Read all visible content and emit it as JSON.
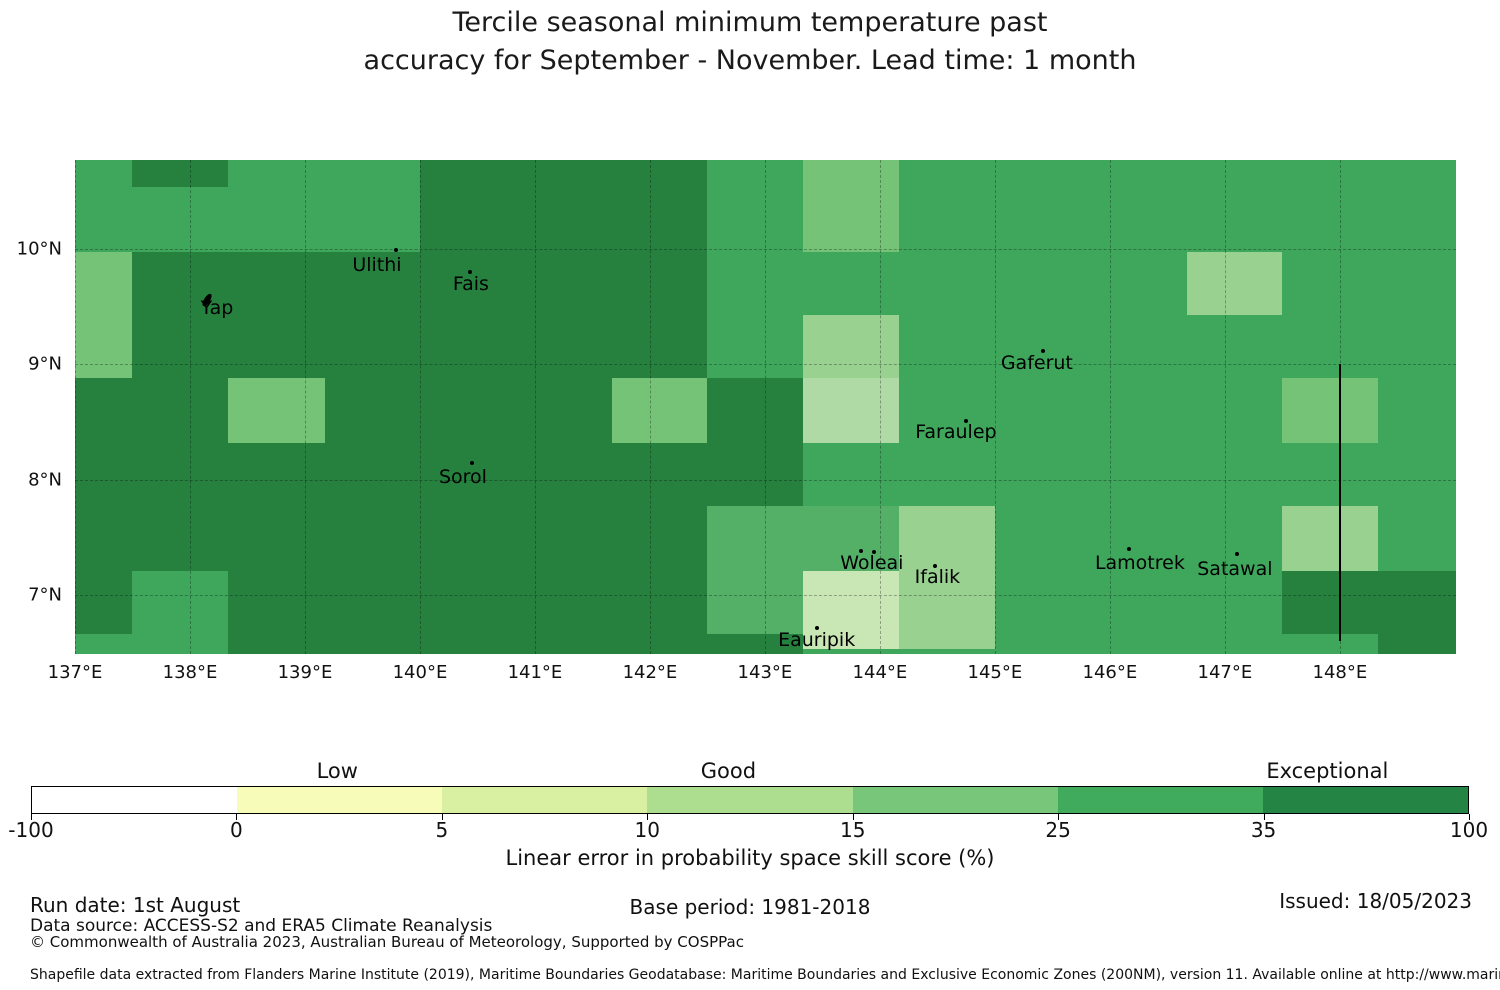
{
  "title": {
    "line1": "Tercile seasonal minimum temperature past",
    "line2": "accuracy for September - November. Lead time: 1 month"
  },
  "map_colors": {
    "dark": "#26813F",
    "medium": "#3FA75C",
    "light1": "#54B067",
    "light2": "#74C377",
    "pale": "#98D190",
    "pale2": "#AFD9A5",
    "palest": "#C9E6B5"
  },
  "chart_data": {
    "type": "heatmap",
    "title": "Tercile seasonal minimum temperature past accuracy for September - November. Lead time: 1 month",
    "value_label": "Linear error in probability space skill score (%)",
    "projection": {
      "lon_min": 137.0,
      "lon_max": 149.01,
      "lat_min": 6.49,
      "lat_max": 10.77
    },
    "x_ticks": [
      "137°E",
      "138°E",
      "139°E",
      "140°E",
      "141°E",
      "142°E",
      "143°E",
      "144°E",
      "145°E",
      "146°E",
      "147°E",
      "148°E"
    ],
    "x_tick_lons": [
      137,
      138,
      139,
      140,
      141,
      142,
      143,
      144,
      145,
      146,
      147,
      148
    ],
    "y_ticks": [
      "7°N",
      "8°N",
      "9°N",
      "10°N"
    ],
    "y_tick_lats": [
      7,
      8,
      9,
      10
    ],
    "gridline_lons": [
      137,
      138,
      139,
      140,
      141,
      142,
      143,
      144,
      145,
      146,
      147,
      148
    ],
    "gridline_lats": [
      7,
      8,
      9,
      10
    ],
    "background_bucket": "25-35",
    "cells": [
      {
        "lon1": 137.5,
        "lon2": 138.33,
        "lat1": 10.54,
        "lat2": 10.77,
        "shade": "dark",
        "bucket": "35-100"
      },
      {
        "lon1": 140.0,
        "lon2": 142.5,
        "lat1": 9.97,
        "lat2": 10.77,
        "shade": "dark",
        "bucket": "35-100"
      },
      {
        "lon1": 137.0,
        "lon2": 142.5,
        "lat1": 6.66,
        "lat2": 9.97,
        "shade": "dark",
        "bucket": "35-100"
      },
      {
        "lon1": 138.33,
        "lon2": 142.5,
        "lat1": 6.49,
        "lat2": 6.66,
        "shade": "dark",
        "bucket": "35-100"
      },
      {
        "lon1": 142.5,
        "lon2": 143.33,
        "lat1": 7.77,
        "lat2": 8.88,
        "shade": "dark",
        "bucket": "35-100"
      },
      {
        "lon1": 142.5,
        "lon2": 143.33,
        "lat1": 6.49,
        "lat2": 6.66,
        "shade": "dark",
        "bucket": "35-100"
      },
      {
        "lon1": 147.5,
        "lon2": 149.01,
        "lat1": 6.66,
        "lat2": 7.21,
        "shade": "dark",
        "bucket": "35-100"
      },
      {
        "lon1": 148.33,
        "lon2": 149.01,
        "lat1": 6.49,
        "lat2": 6.66,
        "shade": "dark",
        "bucket": "35-100"
      },
      {
        "lon1": 137.5,
        "lon2": 138.33,
        "lat1": 6.49,
        "lat2": 7.21,
        "shade": "medium",
        "bucket": "25-35"
      },
      {
        "lon1": 137.0,
        "lon2": 137.5,
        "lat1": 8.88,
        "lat2": 9.97,
        "shade": "light2",
        "bucket": "15-25"
      },
      {
        "lon1": 138.33,
        "lon2": 139.17,
        "lat1": 8.32,
        "lat2": 8.88,
        "shade": "light2",
        "bucket": "15-25"
      },
      {
        "lon1": 141.67,
        "lon2": 142.5,
        "lat1": 8.32,
        "lat2": 8.88,
        "shade": "light2",
        "bucket": "15-25"
      },
      {
        "lon1": 143.33,
        "lon2": 144.17,
        "lat1": 9.97,
        "lat2": 10.77,
        "shade": "light2",
        "bucket": "15-25"
      },
      {
        "lon1": 147.5,
        "lon2": 148.33,
        "lat1": 8.32,
        "lat2": 8.88,
        "shade": "light2",
        "bucket": "15-25"
      },
      {
        "lon1": 142.5,
        "lon2": 143.33,
        "lat1": 6.66,
        "lat2": 7.77,
        "shade": "light1",
        "bucket": "15-25"
      },
      {
        "lon1": 143.33,
        "lon2": 144.17,
        "lat1": 7.21,
        "lat2": 7.77,
        "shade": "light1",
        "bucket": "15-25"
      },
      {
        "lon1": 143.33,
        "lon2": 144.17,
        "lat1": 8.88,
        "lat2": 9.43,
        "shade": "pale",
        "bucket": "10-15"
      },
      {
        "lon1": 146.67,
        "lon2": 147.5,
        "lat1": 9.43,
        "lat2": 9.97,
        "shade": "pale",
        "bucket": "10-15"
      },
      {
        "lon1": 147.5,
        "lon2": 148.33,
        "lat1": 7.21,
        "lat2": 7.77,
        "shade": "pale",
        "bucket": "10-15"
      },
      {
        "lon1": 144.17,
        "lon2": 145.0,
        "lat1": 6.53,
        "lat2": 7.77,
        "shade": "pale",
        "bucket": "10-15"
      },
      {
        "lon1": 143.33,
        "lon2": 144.17,
        "lat1": 8.32,
        "lat2": 8.88,
        "shade": "pale2",
        "bucket": "10-15"
      },
      {
        "lon1": 143.33,
        "lon2": 144.17,
        "lat1": 6.53,
        "lat2": 7.21,
        "shade": "palest",
        "bucket": "5-10"
      }
    ],
    "islands": [
      {
        "name": "Yap",
        "label_lon": 138.235,
        "label_lat": 9.489,
        "markers": [
          [
            138.148,
            9.558
          ]
        ],
        "marker_style": "shape"
      },
      {
        "name": "Ulithi",
        "label_lon": 139.626,
        "label_lat": 9.861,
        "markers": [
          [
            139.791,
            9.991
          ]
        ],
        "marker_style": "dot"
      },
      {
        "name": "Fais",
        "label_lon": 140.443,
        "label_lat": 9.697,
        "markers": [
          [
            140.435,
            9.801
          ]
        ],
        "marker_style": "dot"
      },
      {
        "name": "Sorol",
        "label_lon": 140.374,
        "label_lat": 8.026,
        "markers": [
          [
            140.452,
            8.147
          ]
        ],
        "marker_style": "dot"
      },
      {
        "name": "Gaferut",
        "label_lon": 145.365,
        "label_lat": 9.013,
        "markers": [
          [
            145.417,
            9.117
          ]
        ],
        "marker_style": "dot"
      },
      {
        "name": "Faraulep",
        "label_lon": 144.661,
        "label_lat": 8.416,
        "markers": [
          [
            144.748,
            8.511
          ]
        ],
        "marker_style": "dot"
      },
      {
        "name": "Woleai",
        "label_lon": 143.93,
        "label_lat": 7.28,
        "markers": [
          [
            143.835,
            7.385
          ],
          [
            143.948,
            7.377
          ]
        ],
        "marker_style": "dot"
      },
      {
        "name": "Ifalik",
        "label_lon": 144.5,
        "label_lat": 7.16,
        "markers": [
          [
            144.478,
            7.255
          ]
        ],
        "marker_style": "dot"
      },
      {
        "name": "Eauripik",
        "label_lon": 143.45,
        "label_lat": 6.61,
        "markers": [
          [
            143.455,
            6.715
          ]
        ],
        "marker_style": "dot"
      },
      {
        "name": "Lamotrek",
        "label_lon": 146.261,
        "label_lat": 7.281,
        "markers": [
          [
            146.165,
            7.403
          ]
        ],
        "marker_style": "dot"
      },
      {
        "name": "Satawal",
        "label_lon": 147.087,
        "label_lat": 7.229,
        "markers": [
          [
            147.104,
            7.359
          ]
        ],
        "marker_style": "dot"
      }
    ],
    "eez_line": {
      "lon": 148.0,
      "lat_top": 9.0,
      "lat_bottom": 6.6
    }
  },
  "colorbar": {
    "categories": [
      {
        "label": "Low",
        "pos_pct": 21.3
      },
      {
        "label": "Good",
        "pos_pct": 48.5
      },
      {
        "label": "Exceptional",
        "pos_pct": 90.15
      }
    ],
    "tick_labels": [
      "-100",
      "0",
      "5",
      "10",
      "15",
      "25",
      "35",
      "100"
    ],
    "segment_colors": [
      "#FFFFFF",
      "#F7FCB9",
      "#D9F0A3",
      "#ADDD8E",
      "#78C679",
      "#41AB5D",
      "#238443"
    ],
    "axis_label": "Linear error in probability space skill score (%)"
  },
  "footer": {
    "run_date": "Run date: 1st August",
    "base_period": "Base period: 1981-2018",
    "issued": "Issued: 18/05/2023",
    "data_source": "Data source: ACCESS-S2 and ERA5 Climate Reanalysis",
    "copyright": "© Commonwealth of Australia 2023, Australian Bureau of Meteorology, Supported by COSPPac",
    "shapefile_note": "Shapefile data extracted from Flanders Marine Institute (2019), Maritime Boundaries Geodatabase: Maritime Boundaries and Exclusive Economic Zones (200NM), version 11. Available online at http://www.marineregions.org/."
  }
}
